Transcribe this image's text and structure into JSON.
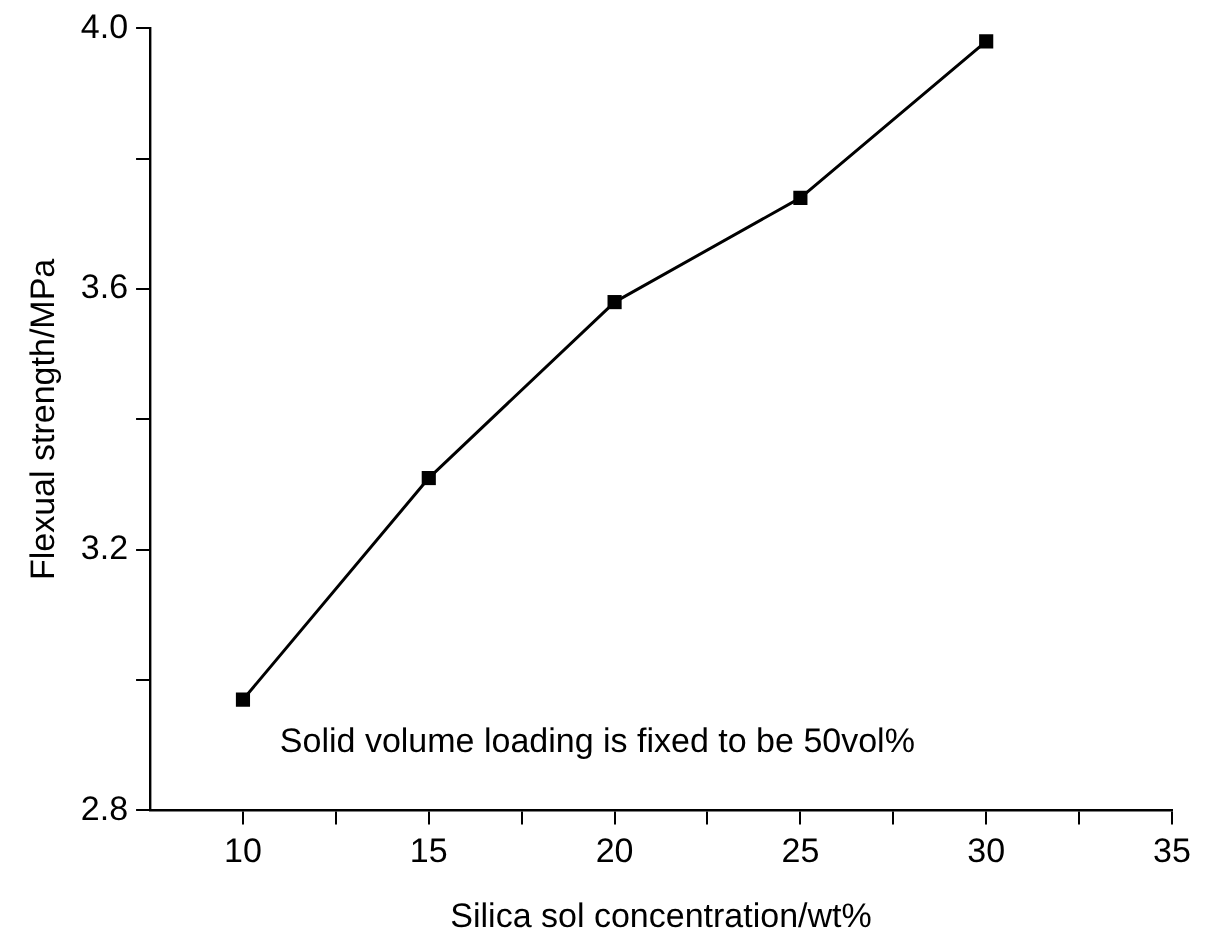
{
  "chart_data": {
    "type": "line",
    "xlabel": "Silica sol concentration/wt%",
    "ylabel": "Flexual strength/MPa",
    "x": [
      10,
      15,
      20,
      25,
      30
    ],
    "series": [
      {
        "color": "#000000",
        "values": [
          2.97,
          3.31,
          3.58,
          3.74,
          3.98
        ]
      }
    ],
    "xlim": [
      7.5,
      35
    ],
    "xticks": [
      10,
      {
        "value": 12.5,
        "label": null
      },
      15,
      {
        "value": 17.5,
        "label": null
      },
      20,
      {
        "value": 22.5,
        "label": null
      },
      25,
      {
        "value": 27.5,
        "label": null
      },
      30,
      {
        "value": 32.5,
        "label": null
      },
      35
    ],
    "ylim": [
      2.8,
      4.0
    ],
    "yticks": [
      {
        "value": 2.8,
        "label": "2.8"
      },
      {
        "value": 3.0,
        "label": null
      },
      {
        "value": 3.2,
        "label": "3.2"
      },
      {
        "value": 3.4,
        "label": null
      },
      {
        "value": 3.6,
        "label": "3.6"
      },
      {
        "value": 3.8,
        "label": null
      },
      {
        "value": 4.0,
        "label": "4.0"
      }
    ],
    "annotations": [
      "Solid volume loading is fixed to be 50vol%"
    ],
    "grid": false,
    "legend": false,
    "marker": "square",
    "line_style": "solid"
  }
}
